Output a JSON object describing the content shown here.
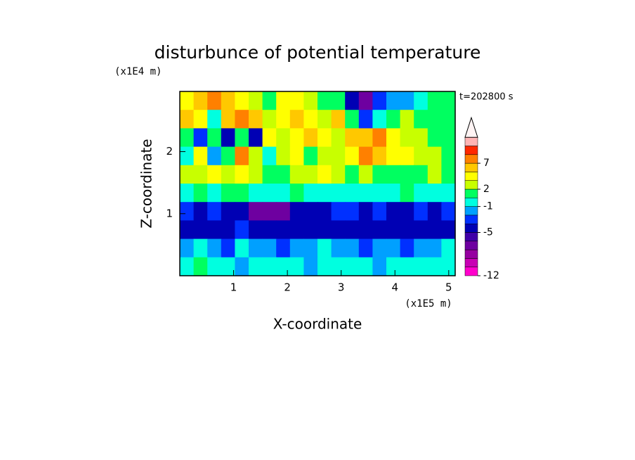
{
  "chart_data": {
    "type": "contour",
    "title": "disturbunce of potential temperature",
    "y_unit": "(x1E4 m)",
    "x_unit": "(x1E5 m)",
    "time_label": "t=202800 s",
    "xlabel": "X-coordinate",
    "ylabel": "Z-coordinate",
    "xlim": [
      0,
      5.12
    ],
    "ylim": [
      0,
      2.97
    ],
    "xticks": [
      1,
      2,
      3,
      4,
      5
    ],
    "yticks": [
      1,
      2
    ],
    "x": [
      0.128,
      0.384,
      0.64,
      0.896,
      1.152,
      1.408,
      1.664,
      1.92,
      2.176,
      2.432,
      2.688,
      2.944,
      3.2,
      3.456,
      3.712,
      3.968,
      4.224,
      4.48,
      4.736,
      4.992
    ],
    "y": [
      2.8215,
      2.5245,
      2.2275,
      1.9305,
      1.6335,
      1.3365,
      1.0395,
      0.7425,
      0.4455,
      0.1485
    ],
    "z": [
      [
        3,
        5,
        7,
        5,
        3,
        2,
        1,
        3,
        3,
        2,
        1,
        0,
        -5,
        -7,
        -3,
        -2,
        -2,
        -1,
        0,
        1
      ],
      [
        5,
        3,
        -1,
        5,
        7,
        5,
        2,
        3,
        5,
        3,
        2,
        5,
        1,
        -3,
        -1,
        1,
        2,
        0,
        0,
        1
      ],
      [
        1,
        -3,
        0,
        -5,
        0,
        -5,
        3,
        2,
        3,
        5,
        3,
        2,
        5,
        5,
        7,
        3,
        2,
        2,
        1,
        0
      ],
      [
        -1,
        3,
        -2,
        1,
        7,
        2,
        -1,
        2,
        3,
        1,
        2,
        2,
        3,
        7,
        5,
        3,
        3,
        2,
        2,
        1
      ],
      [
        2,
        2,
        3,
        2,
        3,
        2,
        1,
        1,
        2,
        2,
        3,
        2,
        1,
        2,
        1,
        0,
        0,
        1,
        2,
        0
      ],
      [
        -1,
        0,
        -1,
        0,
        0,
        -1,
        -1,
        -1,
        0,
        -1,
        -1,
        -1,
        -1,
        -1,
        -1,
        -1,
        0,
        -1,
        -1,
        -1
      ],
      [
        -4,
        -5,
        -4,
        -5,
        -5,
        -7,
        -7,
        -7,
        -5,
        -5,
        -5,
        -4,
        -4,
        -5,
        -4,
        -5,
        -5,
        -4,
        -5,
        -4
      ],
      [
        -5,
        -5,
        -5,
        -5,
        -4,
        -5,
        -5,
        -5,
        -5,
        -5,
        -5,
        -5,
        -5,
        -5,
        -5,
        -5,
        -5,
        -5,
        -5,
        -5
      ],
      [
        -2,
        -1,
        -2,
        -4,
        -1,
        -2,
        -2,
        -4,
        -2,
        -2,
        -1,
        -2,
        -2,
        -4,
        -2,
        -2,
        -4,
        -2,
        -2,
        -1
      ],
      [
        -1,
        0,
        -1,
        -1,
        -2,
        -1,
        -1,
        -1,
        -1,
        -2,
        -1,
        -1,
        -1,
        -1,
        -2,
        -1,
        -1,
        -1,
        -1,
        -1
      ]
    ],
    "levels": [
      -12,
      -10,
      -8,
      -7,
      -6,
      -5,
      -4,
      -2,
      -1,
      0,
      2,
      3,
      5,
      7,
      9,
      11,
      13
    ],
    "colors": [
      "#ff00cc",
      "#c800b4",
      "#9600a0",
      "#6e00a0",
      "#4000a8",
      "#0000b4",
      "#0030ff",
      "#00a0ff",
      "#00ffe0",
      "#00ff60",
      "#c8ff00",
      "#ffff00",
      "#ffc800",
      "#ff8000",
      "#ff2800",
      "#ffb4b4"
    ],
    "over_color": "#fff4f4",
    "colorbar_ticks": [
      -12,
      -5,
      -1,
      2,
      7
    ]
  }
}
